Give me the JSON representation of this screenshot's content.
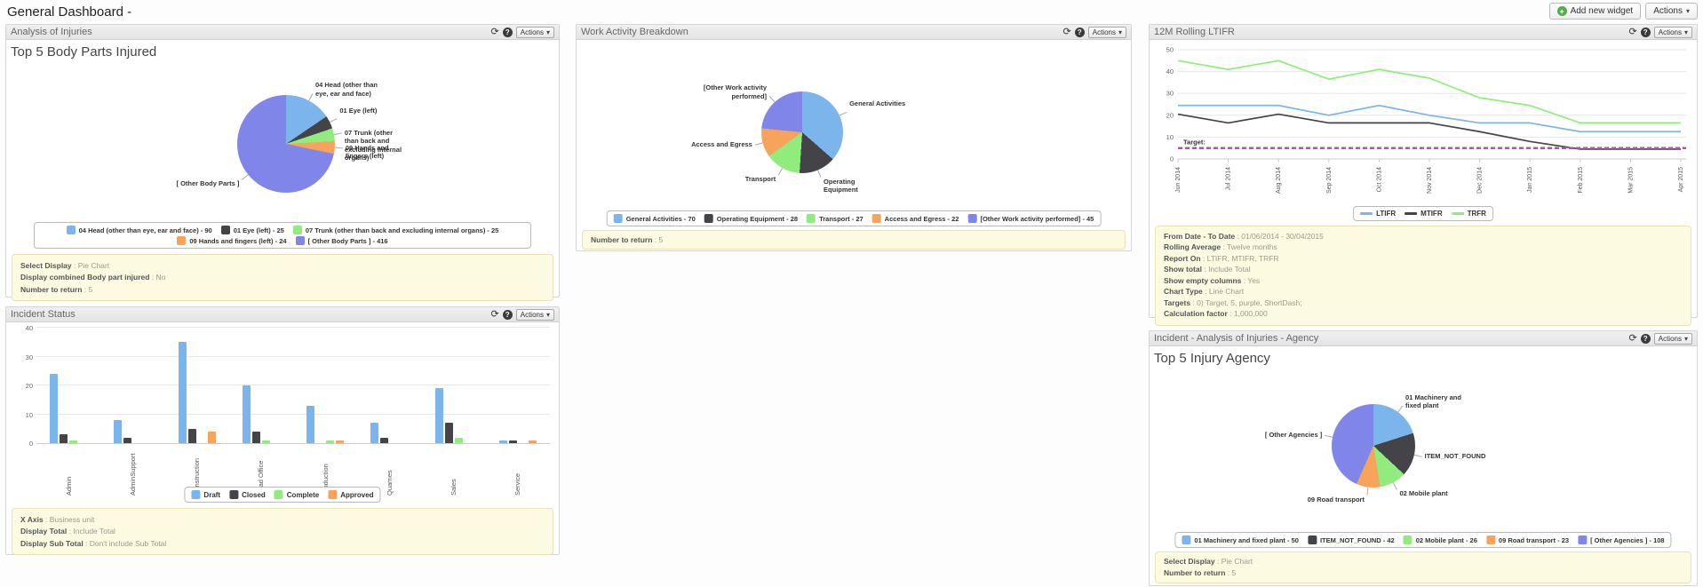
{
  "page": {
    "title": "General Dashboard -",
    "add_widget_label": "Add new widget",
    "actions_label": "Actions",
    "widget_actions_label": "Actions"
  },
  "colors": {
    "blue": "#7cb5ec",
    "dark": "#434348",
    "green": "#90ed7d",
    "orange": "#f7a35c",
    "purple": "#8085e9",
    "target": "#b44fb4"
  },
  "widgets": {
    "injuries": {
      "title": "Analysis of Injuries",
      "subtitle": "Top 5 Body Parts Injured",
      "chart_data": {
        "type": "pie",
        "slices": [
          {
            "label": "04 Head (other than eye, ear and face)",
            "value": 90,
            "color": "#7cb5ec"
          },
          {
            "label": "01 Eye (left)",
            "value": 25,
            "color": "#434348"
          },
          {
            "label": "07 Trunk (other than back and excluding internal organs)",
            "value": 25,
            "color": "#90ed7d"
          },
          {
            "label": "09 Hands and fingers (left)",
            "value": 24,
            "color": "#f7a35c"
          },
          {
            "label": "[ Other Body Parts ]",
            "value": 416,
            "color": "#8085e9"
          }
        ]
      },
      "settings": [
        {
          "label": "Select Display",
          "value": "Pie Chart"
        },
        {
          "label": "Display combined Body part injured",
          "value": "No"
        },
        {
          "label": "Number to return",
          "value": "5"
        }
      ]
    },
    "incident_status": {
      "title": "Incident Status",
      "chart_data": {
        "type": "bar",
        "categories": [
          "Admin",
          "AdminSupport",
          "Construction",
          "Head Office",
          "Production",
          "Quarries",
          "Sales",
          "Service"
        ],
        "series": [
          {
            "name": "Draft",
            "color": "#7cb5ec",
            "values": [
              24,
              8,
              35,
              20,
              13,
              7,
              19,
              1
            ]
          },
          {
            "name": "Closed",
            "color": "#434348",
            "values": [
              3,
              2,
              5,
              4,
              0,
              2,
              7,
              1
            ]
          },
          {
            "name": "Complete",
            "color": "#90ed7d",
            "values": [
              1,
              0,
              0,
              1,
              1,
              0,
              2,
              0
            ]
          },
          {
            "name": "Approved",
            "color": "#f7a35c",
            "values": [
              0,
              0,
              4,
              0,
              1,
              0,
              0,
              1
            ]
          }
        ],
        "ylim": [
          0,
          40
        ],
        "yticks": [
          0,
          10,
          20,
          30,
          40
        ],
        "xlabel": "Business unit",
        "grid": true,
        "legend_position": "bottom"
      },
      "settings": [
        {
          "label": "X Axis",
          "value": "Business unit"
        },
        {
          "label": "Display Total",
          "value": "Include Total"
        },
        {
          "label": "Display Sub Total",
          "value": "Don't include Sub Total"
        }
      ]
    },
    "work_activity": {
      "title": "Work Activity Breakdown",
      "chart_data": {
        "type": "pie",
        "slices": [
          {
            "label": "General Activities",
            "value": 70,
            "color": "#7cb5ec"
          },
          {
            "label": "Operating Equipment",
            "value": 28,
            "color": "#434348"
          },
          {
            "label": "Transport",
            "value": 27,
            "color": "#90ed7d"
          },
          {
            "label": "Access and Egress",
            "value": 22,
            "color": "#f7a35c"
          },
          {
            "label": "[Other Work activity performed]",
            "value": 45,
            "color": "#8085e9"
          }
        ]
      },
      "settings": [
        {
          "label": "Number to return",
          "value": "5"
        }
      ]
    },
    "ltifr": {
      "title": "12M Rolling LTIFR",
      "chart_data": {
        "type": "line",
        "x": [
          "Jun 2014",
          "Jul 2014",
          "Aug 2014",
          "Sep 2014",
          "Oct 2014",
          "Nov 2014",
          "Dec 2014",
          "Jan 2015",
          "Feb 2015",
          "Mar 2015",
          "Apr 2015"
        ],
        "series": [
          {
            "name": "LTIFR",
            "color": "#7cb5ec",
            "values": [
              24.5,
              24.5,
              24.5,
              20,
              24.5,
              20,
              16.5,
              16.5,
              12.5,
              12.5,
              12.5
            ]
          },
          {
            "name": "MTIFR",
            "color": "#434348",
            "values": [
              20.5,
              16.5,
              20.5,
              16.5,
              16.5,
              16.5,
              12.5,
              8,
              4.5,
              4.5,
              4.5
            ]
          },
          {
            "name": "TRFR",
            "color": "#90ed7d",
            "values": [
              45,
              41,
              45,
              36.5,
              41,
              37,
              28,
              24.5,
              16.5,
              16.5,
              16.5
            ]
          }
        ],
        "ylim": [
          0,
          50
        ],
        "yticks": [
          0,
          10,
          20,
          30,
          40,
          50
        ],
        "target": {
          "label": "Target:",
          "value": 5,
          "color": "#b44fb4",
          "style": "ShortDash"
        },
        "grid": true,
        "legend_position": "bottom"
      },
      "settings": [
        {
          "label": "From Date - To Date",
          "value": "01/06/2014 - 30/04/2015"
        },
        {
          "label": "Rolling Average",
          "value": "Twelve months"
        },
        {
          "label": "Report On",
          "value": "LTIFR, MTIFR, TRFR"
        },
        {
          "label": "Show total",
          "value": "Include Total"
        },
        {
          "label": "Show empty columns",
          "value": "Yes"
        },
        {
          "label": "Chart Type",
          "value": "Line Chart"
        },
        {
          "label": "Targets",
          "value": "0) Target, 5, purple, ShortDash;"
        },
        {
          "label": "Calculation factor",
          "value": "1,000,000"
        }
      ]
    },
    "agency": {
      "title": "Incident - Analysis of Injuries - Agency",
      "subtitle": "Top 5 Injury Agency",
      "chart_data": {
        "type": "pie",
        "slices": [
          {
            "label": "01 Machinery and fixed plant",
            "value": 50,
            "color": "#7cb5ec"
          },
          {
            "label": "ITEM_NOT_FOUND",
            "value": 42,
            "color": "#434348"
          },
          {
            "label": "02 Mobile plant",
            "value": 26,
            "color": "#90ed7d"
          },
          {
            "label": "09 Road transport",
            "value": 23,
            "color": "#f7a35c"
          },
          {
            "label": "[ Other Agencies ]",
            "value": 108,
            "color": "#8085e9"
          }
        ]
      },
      "settings": [
        {
          "label": "Select Display",
          "value": "Pie Chart"
        },
        {
          "label": "Number to return",
          "value": "5"
        }
      ]
    }
  }
}
